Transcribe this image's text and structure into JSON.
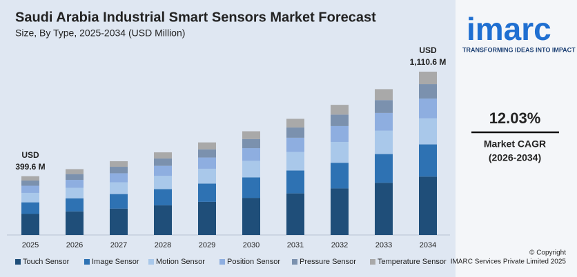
{
  "chart_data": {
    "type": "stacked_bar",
    "title": "Saudi Arabia Industrial Smart Sensors Market Forecast",
    "subtitle": "Size, By Type, 2025-2034 (USD Million)",
    "categories": [
      "2025",
      "2026",
      "2027",
      "2028",
      "2029",
      "2030",
      "2031",
      "2032",
      "2033",
      "2034"
    ],
    "series": [
      {
        "name": "Touch Sensor",
        "color": "#1f4e79",
        "values": [
          143,
          160.3,
          179.5,
          201.2,
          225.4,
          252.5,
          282.8,
          316.8,
          355.0,
          397
        ]
      },
      {
        "name": "Image Sensor",
        "color": "#2e72b3",
        "values": [
          79,
          88.2,
          98.8,
          110.7,
          124.0,
          138.9,
          155.6,
          174.3,
          195.3,
          219
        ]
      },
      {
        "name": "Motion Sensor",
        "color": "#a9c8ea",
        "values": [
          64,
          71.6,
          80.2,
          89.9,
          100.7,
          112.8,
          126.4,
          141.6,
          158.6,
          177
        ]
      },
      {
        "name": "Position Sensor",
        "color": "#8eaee0",
        "values": [
          49,
          54.6,
          61.2,
          68.6,
          76.8,
          86.0,
          96.4,
          108.0,
          121.0,
          135
        ]
      },
      {
        "name": "Pressure Sensor",
        "color": "#7b91ae",
        "values": [
          35,
          39.4,
          44.1,
          49.4,
          55.4,
          62.1,
          69.5,
          77.9,
          87.3,
          98
        ]
      },
      {
        "name": "Temperature Sensor",
        "color": "#a9a9a9",
        "values": [
          29.6,
          33.6,
          37.6,
          42.1,
          47.2,
          52.9,
          59.3,
          66.4,
          74.4,
          84.6
        ]
      }
    ],
    "annotations": [
      {
        "lines": [
          "USD",
          "399.6 M"
        ]
      },
      {
        "lines": [
          "USD",
          "1,110.6 M"
        ]
      }
    ]
  },
  "sidebar": {
    "logo": "imarc",
    "tagline": "TRANSFORMING IDEAS INTO IMPACT",
    "cagr": "12.03%",
    "cagr_label": "Market CAGR",
    "cagr_period": "(2026-2034)",
    "copyright": "© Copyright",
    "owner": "IMARC Services Private Limited 2025"
  }
}
